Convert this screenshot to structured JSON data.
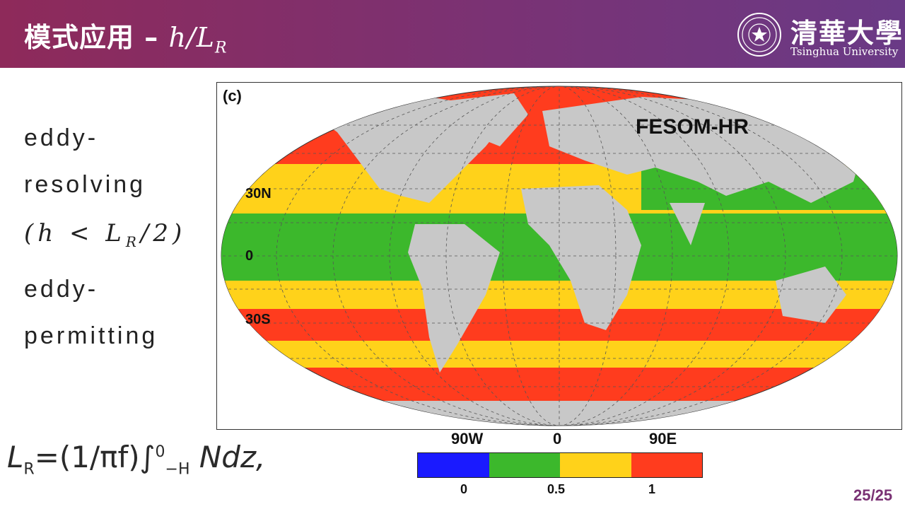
{
  "header": {
    "title_cn": "模式应用 –",
    "title_math": "h/L",
    "title_sub": "R"
  },
  "logo": {
    "name_cn": "清華大學",
    "name_en": "Tsinghua University"
  },
  "side": {
    "line1": "eddy-",
    "line2": "resolving",
    "line3_math": "(h < L",
    "line3_sub": "R",
    "line3_end": "/2)",
    "line4": "eddy-",
    "line5": "permitting"
  },
  "formula": {
    "lhs": "L",
    "lhs_sub": "R",
    "rhs_pre": "=(1/πf)",
    "integral": "∫",
    "int_upper": "0",
    "int_lower": "−H",
    "rhs_post": "Ndz,"
  },
  "figure": {
    "panel_label": "(c)",
    "model_label": "FESOM-HR",
    "lat_labels": [
      "30N",
      "0",
      "30S"
    ],
    "lon_labels": [
      "90W",
      "0",
      "90E"
    ]
  },
  "colorbar": {
    "colors": [
      "#1a1aff",
      "#3cb82c",
      "#ffd21a",
      "#ff3c1e"
    ],
    "tick_labels": [
      "0",
      "0.5",
      "1"
    ]
  },
  "page_number": "25/25"
}
